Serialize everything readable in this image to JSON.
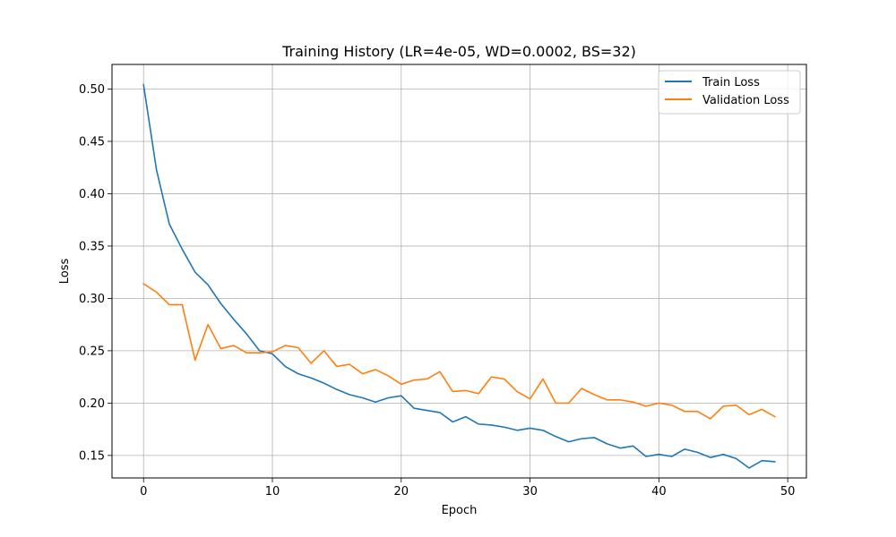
{
  "chart_data": {
    "type": "line",
    "title": "Training History (LR=4e-05, WD=0.0002, BS=32)",
    "xlabel": "Epoch",
    "ylabel": "Loss",
    "xlim": [
      -2.45,
      51.45
    ],
    "ylim": [
      0.1285,
      0.5235
    ],
    "xticks": [
      0,
      10,
      20,
      30,
      40,
      50
    ],
    "xtick_labels": [
      "0",
      "10",
      "20",
      "30",
      "40",
      "50"
    ],
    "yticks": [
      0.15,
      0.2,
      0.25,
      0.3,
      0.35,
      0.4,
      0.45,
      0.5
    ],
    "ytick_labels": [
      "0.15",
      "0.20",
      "0.25",
      "0.30",
      "0.35",
      "0.40",
      "0.45",
      "0.50"
    ],
    "grid": true,
    "legend_position": "top-right",
    "x": [
      0,
      1,
      2,
      3,
      4,
      5,
      6,
      7,
      8,
      9,
      10,
      11,
      12,
      13,
      14,
      15,
      16,
      17,
      18,
      19,
      20,
      21,
      22,
      23,
      24,
      25,
      26,
      27,
      28,
      29,
      30,
      31,
      32,
      33,
      34,
      35,
      36,
      37,
      38,
      39,
      40,
      41,
      42,
      43,
      44,
      45,
      46,
      47,
      48,
      49
    ],
    "series": [
      {
        "name": "Train Loss",
        "color": "#1f77b4",
        "values": [
          0.504,
          0.423,
          0.371,
          0.347,
          0.325,
          0.313,
          0.295,
          0.28,
          0.266,
          0.25,
          0.247,
          0.235,
          0.228,
          0.224,
          0.219,
          0.213,
          0.208,
          0.205,
          0.201,
          0.205,
          0.207,
          0.195,
          0.193,
          0.191,
          0.182,
          0.187,
          0.18,
          0.179,
          0.177,
          0.174,
          0.176,
          0.174,
          0.168,
          0.163,
          0.166,
          0.167,
          0.161,
          0.157,
          0.159,
          0.149,
          0.151,
          0.149,
          0.156,
          0.153,
          0.148,
          0.151,
          0.147,
          0.138,
          0.145,
          0.144
        ]
      },
      {
        "name": "Validation Loss",
        "color": "#ff7f0e",
        "values": [
          0.314,
          0.306,
          0.294,
          0.294,
          0.241,
          0.275,
          0.252,
          0.255,
          0.248,
          0.248,
          0.249,
          0.255,
          0.253,
          0.238,
          0.25,
          0.235,
          0.237,
          0.228,
          0.232,
          0.226,
          0.218,
          0.222,
          0.223,
          0.23,
          0.211,
          0.212,
          0.209,
          0.225,
          0.223,
          0.211,
          0.204,
          0.223,
          0.2,
          0.2,
          0.214,
          0.208,
          0.203,
          0.203,
          0.201,
          0.197,
          0.2,
          0.198,
          0.192,
          0.192,
          0.185,
          0.197,
          0.198,
          0.189,
          0.194,
          0.187
        ]
      }
    ]
  }
}
